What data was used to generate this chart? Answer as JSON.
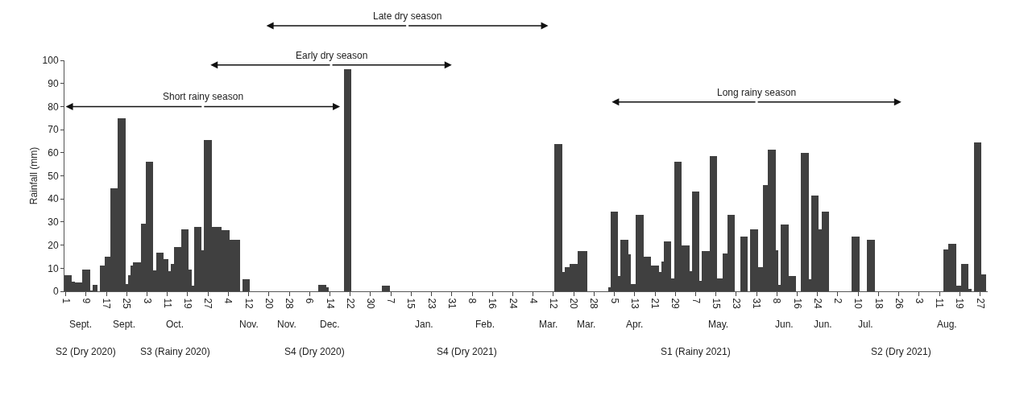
{
  "chart_data": {
    "type": "bar",
    "ylabel": "Rainfall (mm)",
    "color": "#404040",
    "x": [
      "2020-09-01",
      "2020-09-02",
      "2020-09-03",
      "2020-09-04",
      "2020-09-05",
      "2020-09-06",
      "2020-09-07",
      "2020-09-08",
      "2020-09-09",
      "2020-09-10",
      "2020-09-11",
      "2020-09-12",
      "2020-09-13",
      "2020-09-15",
      "2020-09-16",
      "2020-09-17",
      "2020-09-18",
      "2020-09-19",
      "2020-09-20",
      "2020-09-21",
      "2020-09-22",
      "2020-09-23",
      "2020-09-24",
      "2020-09-25",
      "2020-09-26",
      "2020-09-27",
      "2020-09-28",
      "2020-09-29",
      "2020-09-30",
      "2020-10-01",
      "2020-10-02",
      "2020-10-03",
      "2020-10-04",
      "2020-10-05",
      "2020-10-06",
      "2020-10-07",
      "2020-10-08",
      "2020-10-09",
      "2020-10-10",
      "2020-10-11",
      "2020-10-12",
      "2020-10-13",
      "2020-10-14",
      "2020-10-15",
      "2020-10-16",
      "2020-10-17",
      "2020-10-18",
      "2020-10-19",
      "2020-10-20",
      "2020-10-21",
      "2020-10-22",
      "2020-10-23",
      "2020-10-24",
      "2020-10-25",
      "2020-10-26",
      "2020-10-27",
      "2020-10-28",
      "2020-10-29",
      "2020-10-30",
      "2020-10-31",
      "2020-11-01",
      "2020-11-02",
      "2020-11-03",
      "2020-11-04",
      "2020-11-05",
      "2020-11-06",
      "2020-11-07",
      "2020-11-08",
      "2020-11-10",
      "2020-11-11",
      "2020-11-12",
      "2020-12-10",
      "2020-12-11",
      "2020-12-12",
      "2020-12-13",
      "2020-12-20",
      "2020-12-21",
      "2020-12-22",
      "2021-01-04",
      "2021-01-05",
      "2021-01-06",
      "2021-03-13",
      "2021-03-14",
      "2021-03-15",
      "2021-03-16",
      "2021-03-17",
      "2021-03-18",
      "2021-03-19",
      "2021-03-20",
      "2021-03-21",
      "2021-03-22",
      "2021-03-23",
      "2021-03-24",
      "2021-03-25",
      "2021-04-03",
      "2021-04-04",
      "2021-04-05",
      "2021-04-06",
      "2021-04-07",
      "2021-04-08",
      "2021-04-09",
      "2021-04-10",
      "2021-04-11",
      "2021-04-12",
      "2021-04-13",
      "2021-04-14",
      "2021-04-15",
      "2021-04-16",
      "2021-04-17",
      "2021-04-18",
      "2021-04-19",
      "2021-04-20",
      "2021-04-21",
      "2021-04-22",
      "2021-04-23",
      "2021-04-24",
      "2021-04-25",
      "2021-04-26",
      "2021-04-27",
      "2021-04-28",
      "2021-04-29",
      "2021-04-30",
      "2021-05-01",
      "2021-05-02",
      "2021-05-03",
      "2021-05-04",
      "2021-05-05",
      "2021-05-06",
      "2021-05-07",
      "2021-05-08",
      "2021-05-09",
      "2021-05-10",
      "2021-05-11",
      "2021-05-12",
      "2021-05-13",
      "2021-05-14",
      "2021-05-15",
      "2021-05-16",
      "2021-05-17",
      "2021-05-18",
      "2021-05-19",
      "2021-05-20",
      "2021-05-21",
      "2021-05-22",
      "2021-05-25",
      "2021-05-26",
      "2021-05-27",
      "2021-05-29",
      "2021-05-30",
      "2021-05-31",
      "2021-06-01",
      "2021-06-02",
      "2021-06-03",
      "2021-06-04",
      "2021-06-05",
      "2021-06-06",
      "2021-06-07",
      "2021-06-08",
      "2021-06-09",
      "2021-06-10",
      "2021-06-11",
      "2021-06-12",
      "2021-06-13",
      "2021-06-14",
      "2021-06-15",
      "2021-06-18",
      "2021-06-19",
      "2021-06-20",
      "2021-06-21",
      "2021-06-22",
      "2021-06-23",
      "2021-06-24",
      "2021-06-25",
      "2021-06-26",
      "2021-06-27",
      "2021-06-28",
      "2021-07-08",
      "2021-07-09",
      "2021-07-10",
      "2021-07-14",
      "2021-07-15",
      "2021-07-16",
      "2021-08-13",
      "2021-08-14",
      "2021-08-15",
      "2021-08-16",
      "2021-08-17",
      "2021-08-18",
      "2021-08-19",
      "2021-08-20",
      "2021-08-21",
      "2021-08-22",
      "2021-08-23",
      "2021-08-25",
      "2021-08-26",
      "2021-08-27",
      "2021-08-28",
      "2021-08-29"
    ],
    "values": [
      7,
      7,
      7,
      4.3,
      3.7,
      3.7,
      3.7,
      9.4,
      9.4,
      9.4,
      0.5,
      2.7,
      2.7,
      11,
      11,
      15,
      15,
      44.5,
      44.5,
      44.5,
      75,
      75,
      75,
      3.3,
      7,
      11.3,
      12.4,
      12.4,
      12.4,
      29.3,
      29.3,
      56,
      56,
      56,
      9.1,
      16.7,
      16.7,
      16.7,
      14,
      14,
      8.8,
      12,
      19.1,
      19.1,
      19.1,
      26.8,
      26.8,
      26.8,
      9.4,
      2.4,
      28,
      28,
      28,
      17.7,
      65.5,
      65.5,
      65.5,
      28,
      28,
      28,
      28,
      26.5,
      26.5,
      26.5,
      22.2,
      22.2,
      22.2,
      22.2,
      5.2,
      5.2,
      5.2,
      2.7,
      2.7,
      2.7,
      1.8,
      96.3,
      96.3,
      96.3,
      2.4,
      2.4,
      2.4,
      63.7,
      63.7,
      63.7,
      8.5,
      10.5,
      10.5,
      12,
      12,
      12,
      17.4,
      17.4,
      17.4,
      17.4,
      1.8,
      34.5,
      34.5,
      34.5,
      6.7,
      22.2,
      22.2,
      22.2,
      15.9,
      3.3,
      3.3,
      33.2,
      33.2,
      33.2,
      15,
      15,
      15,
      11.1,
      11.1,
      11.1,
      8.4,
      12.8,
      21.6,
      21.6,
      21.6,
      5.5,
      56.1,
      56.1,
      56.1,
      19.9,
      19.9,
      19.9,
      8.8,
      43.2,
      43.2,
      43.2,
      4.6,
      17.4,
      17.4,
      17.4,
      58.5,
      58.5,
      58.5,
      5.5,
      5.5,
      16.5,
      16.5,
      33.2,
      33.2,
      33.2,
      23.8,
      23.8,
      23.8,
      26.8,
      26.8,
      26.8,
      10.4,
      10.4,
      46,
      46,
      61.2,
      61.2,
      61.2,
      17.7,
      2.7,
      28.9,
      28.9,
      28.9,
      6.5,
      6.5,
      6.5,
      59.8,
      59.8,
      59.8,
      5.2,
      41.5,
      41.5,
      41.5,
      26.8,
      34.5,
      34.5,
      34.5,
      23.8,
      23.8,
      23.8,
      22.2,
      22.2,
      22.2,
      18,
      18,
      20.7,
      20.7,
      20.7,
      2.4,
      2.4,
      12,
      12,
      12,
      1.2,
      64.6,
      64.6,
      64.6,
      7.3,
      7.3
    ],
    "xlim": [
      "2020-08-31T12:00",
      "2021-08-30T00:00"
    ],
    "xticks": [
      {
        "value": "2020-09-01",
        "label": "1"
      },
      {
        "value": "2020-09-09",
        "label": "9"
      },
      {
        "value": "2020-09-17",
        "label": "17"
      },
      {
        "value": "2020-09-25",
        "label": "25"
      },
      {
        "value": "2020-10-03",
        "label": "3"
      },
      {
        "value": "2020-10-11",
        "label": "11"
      },
      {
        "value": "2020-10-19",
        "label": "19"
      },
      {
        "value": "2020-10-27",
        "label": "27"
      },
      {
        "value": "2020-11-04",
        "label": "4"
      },
      {
        "value": "2020-11-12",
        "label": "12"
      },
      {
        "value": "2020-11-20",
        "label": "20"
      },
      {
        "value": "2020-11-28",
        "label": "28"
      },
      {
        "value": "2020-12-06",
        "label": "6"
      },
      {
        "value": "2020-12-14",
        "label": "14"
      },
      {
        "value": "2020-12-22",
        "label": "22"
      },
      {
        "value": "2020-12-30",
        "label": "30"
      },
      {
        "value": "2021-01-07",
        "label": "7"
      },
      {
        "value": "2021-01-15",
        "label": "15"
      },
      {
        "value": "2021-01-23",
        "label": "23"
      },
      {
        "value": "2021-01-31",
        "label": "31"
      },
      {
        "value": "2021-02-08",
        "label": "8"
      },
      {
        "value": "2021-02-16",
        "label": "16"
      },
      {
        "value": "2021-02-24",
        "label": "24"
      },
      {
        "value": "2021-03-04",
        "label": "4"
      },
      {
        "value": "2021-03-12",
        "label": "12"
      },
      {
        "value": "2021-03-20",
        "label": "20"
      },
      {
        "value": "2021-03-28",
        "label": "28"
      },
      {
        "value": "2021-04-05",
        "label": "5"
      },
      {
        "value": "2021-04-13",
        "label": "13"
      },
      {
        "value": "2021-04-21",
        "label": "21"
      },
      {
        "value": "2021-04-29",
        "label": "29"
      },
      {
        "value": "2021-05-07",
        "label": "7"
      },
      {
        "value": "2021-05-15",
        "label": "15"
      },
      {
        "value": "2021-05-23",
        "label": "23"
      },
      {
        "value": "2021-05-31",
        "label": "31"
      },
      {
        "value": "2021-06-08",
        "label": "8"
      },
      {
        "value": "2021-06-16",
        "label": "16"
      },
      {
        "value": "2021-06-24",
        "label": "24"
      },
      {
        "value": "2021-07-02",
        "label": "2"
      },
      {
        "value": "2021-07-10",
        "label": "10"
      },
      {
        "value": "2021-07-18",
        "label": "18"
      },
      {
        "value": "2021-07-26",
        "label": "26"
      },
      {
        "value": "2021-08-03",
        "label": "3"
      },
      {
        "value": "2021-08-11",
        "label": "11"
      },
      {
        "value": "2021-08-19",
        "label": "19"
      },
      {
        "value": "2021-08-27",
        "label": "27"
      }
    ],
    "ylim": [
      0,
      100
    ],
    "yticks": [
      0,
      10,
      20,
      30,
      40,
      50,
      60,
      70,
      80,
      90,
      100
    ],
    "annotations": [
      "Short rainy season",
      "Early dry season",
      "Late dry season",
      "Long rainy season",
      "Sept.",
      "Sept.",
      "Oct.",
      "Nov.",
      "Nov.",
      "Dec.",
      "Jan.",
      "Feb.",
      "Mar.",
      "Mar.",
      "Apr.",
      "May.",
      "Jun.",
      "Jun.",
      "Jul.",
      "Aug.",
      "S2 (Dry 2020)",
      "S3 (Rainy 2020)",
      "S4 (Dry 2020)",
      "S4 (Dry 2021)",
      "S1 (Rainy 2021)",
      "S2 (Dry 2021)"
    ]
  }
}
